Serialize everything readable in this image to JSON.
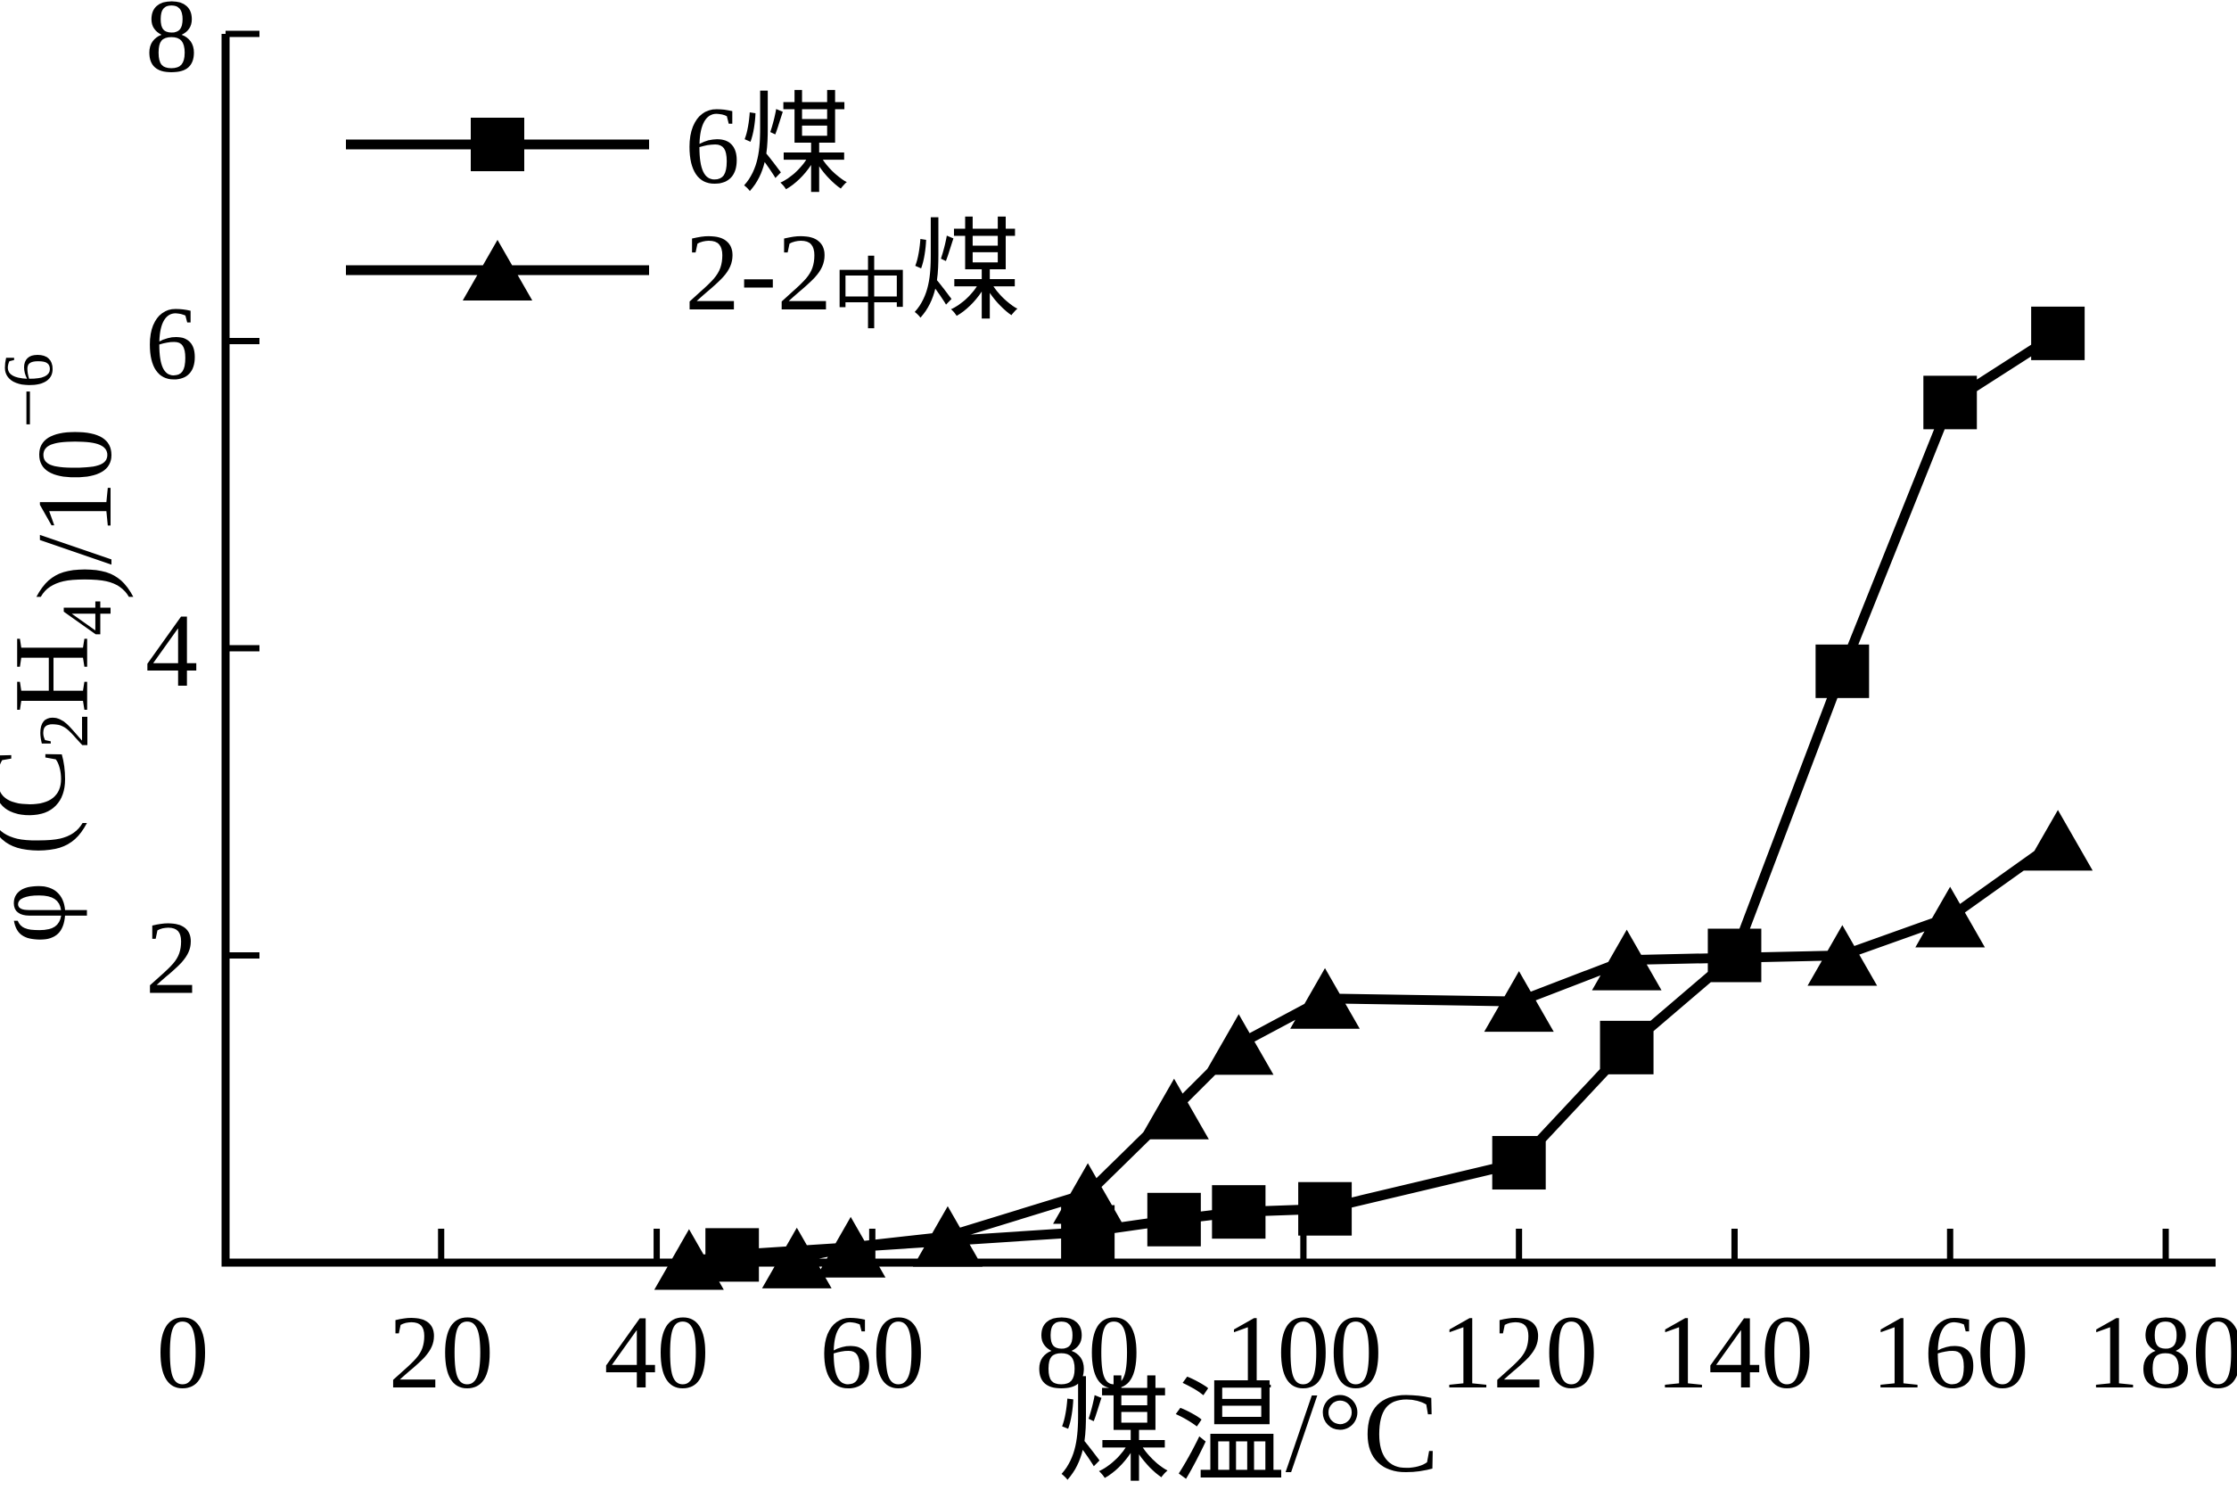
{
  "colors": {
    "ink": "#000000",
    "background": "#ffffff"
  },
  "chart_data": {
    "type": "line",
    "title": "",
    "xlabel": "煤温/°C",
    "ylabel": "φ (C₂H₄)/10⁻⁶",
    "xlim": [
      0,
      180
    ],
    "ylim": [
      0,
      8
    ],
    "x_ticks": [
      0,
      20,
      40,
      60,
      80,
      100,
      120,
      140,
      160,
      180
    ],
    "y_ticks": [
      0,
      2,
      4,
      6,
      8
    ],
    "grid": false,
    "legend_position": "upper-left",
    "series": [
      {
        "name": "6煤",
        "marker": "square",
        "line_color": "#000000",
        "x": [
          47,
          80,
          88,
          94,
          102,
          120,
          130,
          140,
          150,
          160,
          170
        ],
        "y": [
          0.05,
          0.2,
          0.28,
          0.33,
          0.35,
          0.65,
          1.4,
          2.0,
          3.85,
          5.6,
          6.05
        ]
      },
      {
        "name": "2-2中煤",
        "marker": "triangle",
        "line_color": "#000000",
        "x": [
          43,
          53,
          58,
          67,
          80,
          88,
          94,
          102,
          120,
          130,
          150,
          160,
          170
        ],
        "y": [
          0.02,
          0.03,
          0.1,
          0.17,
          0.45,
          1.0,
          1.42,
          1.72,
          1.7,
          1.97,
          2.0,
          2.25,
          2.75
        ]
      }
    ],
    "ylabel_parts": [
      {
        "t": "φ (C"
      },
      {
        "t": "2",
        "shift": "sub"
      },
      {
        "t": "H"
      },
      {
        "t": "4",
        "shift": "sub"
      },
      {
        "t": ")/10"
      },
      {
        "t": "−6",
        "shift": "sup"
      }
    ],
    "xlabel_parts": [
      {
        "t": "煤温/°C"
      }
    ],
    "legend": [
      {
        "marker": "square",
        "parts": [
          {
            "t": "6煤"
          }
        ]
      },
      {
        "marker": "triangle",
        "parts": [
          {
            "t": "2-2"
          },
          {
            "t": "中",
            "small": true
          },
          {
            "t": "煤"
          }
        ]
      }
    ]
  }
}
